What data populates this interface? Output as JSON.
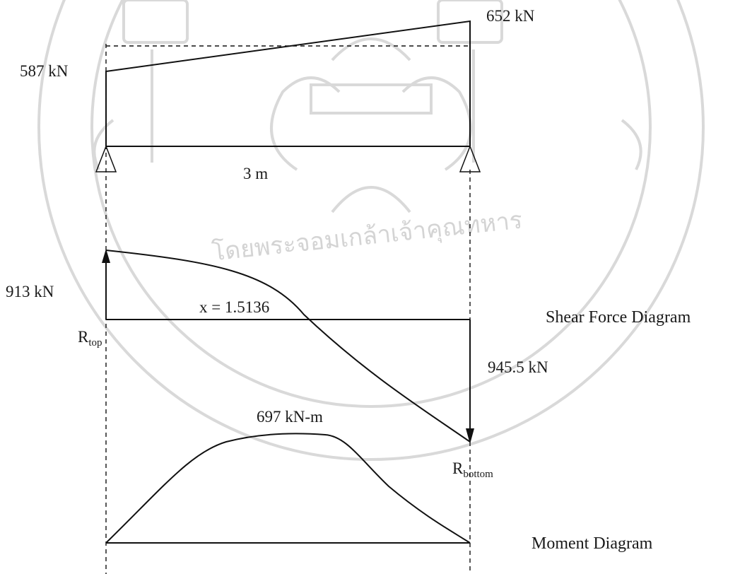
{
  "load": {
    "left_label": "587 kN",
    "right_label": "652 kN",
    "span_label": "3 m"
  },
  "shear": {
    "left_label": "913 kN",
    "right_label": "945.5 kN",
    "zero_label": "x = 1.5136",
    "reaction_top": "R",
    "reaction_top_sub": "top",
    "reaction_bottom": "R",
    "reaction_bottom_sub": "bottom",
    "title": "Shear Force Diagram"
  },
  "moment": {
    "peak_label": "697 kN-m",
    "title": "Moment Diagram"
  },
  "watermark": {
    "text": "โดยพระจอมเกล้าเจ้าคุณทหาร"
  }
}
